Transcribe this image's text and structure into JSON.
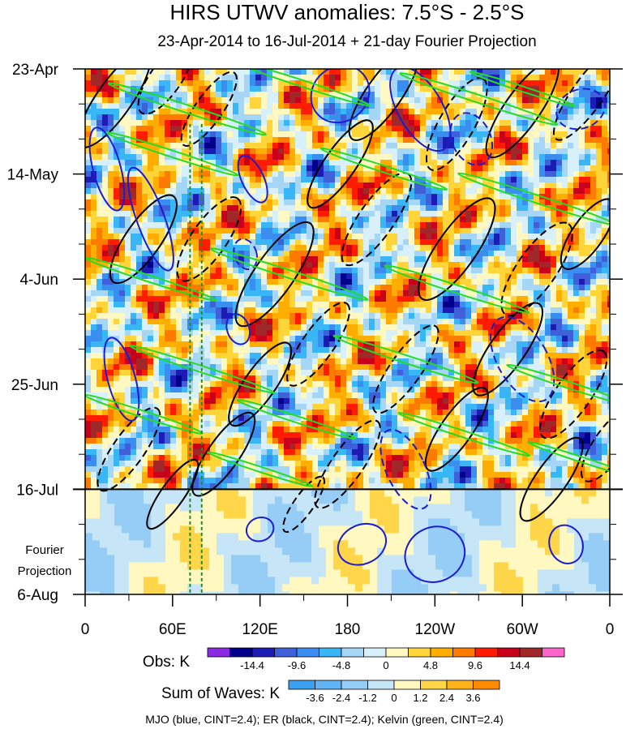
{
  "chart_data": {
    "type": "heatmap",
    "title": "HIRS UTWV anomalies: 7.5°S - 2.5°S",
    "subtitle": "23-Apr-2014 to 16-Jul-2014 + 21-day Fourier Projection",
    "xlabel": "",
    "ylabel": "",
    "x_ticks": [
      "0",
      "60E",
      "120E",
      "180",
      "120W",
      "60W",
      "0"
    ],
    "x_tick_values": [
      0,
      60,
      120,
      180,
      240,
      300,
      360
    ],
    "y_ticks": [
      "23-Apr",
      "14-May",
      "4-Jun",
      "25-Jun",
      "16-Jul",
      "6-Aug"
    ],
    "y_tick_values": [
      0,
      21,
      42,
      63,
      84,
      105
    ],
    "xlim": [
      0,
      360
    ],
    "ylim": [
      0,
      105
    ],
    "observation_end_day": 84,
    "projection_label": [
      "Fourier",
      "Projection"
    ],
    "reference_lines_lon": [
      72,
      80
    ],
    "obs_colorbar": {
      "label": "Obs: K",
      "levels": [
        "-14.4",
        "-9.6",
        "-4.8",
        "0",
        "4.8",
        "9.6",
        "14.4"
      ],
      "colors": [
        "#8a2be2",
        "#00008b",
        "#1c1cb4",
        "#3f60d8",
        "#3a8ef0",
        "#38b6f6",
        "#a6d6f6",
        "#d8f0fa",
        "#fff8c0",
        "#ffd53a",
        "#ffae00",
        "#ff7b00",
        "#ff1c00",
        "#c8001c",
        "#a02828",
        "#ff66cc"
      ]
    },
    "waves_colorbar": {
      "label": "Sum of Waves: K",
      "levels": [
        "-3.6",
        "-2.4",
        "-1.2",
        "0",
        "1.2",
        "2.4",
        "3.6"
      ],
      "colors": [
        "#3aa0f0",
        "#63b4f4",
        "#96cdf6",
        "#c6e6f8",
        "#fff8c0",
        "#ffd54a",
        "#ffb31a",
        "#ff8c00"
      ]
    },
    "footer": "MJO (blue, CINT=2.4); ER (black, CINT=2.4); Kelvin (green, CINT=2.4)",
    "series": [
      {
        "name": "MJO",
        "color": "#1c1cd0"
      },
      {
        "name": "ER",
        "color": "#000000"
      },
      {
        "name": "Kelvin",
        "color": "#22dd22"
      }
    ]
  }
}
